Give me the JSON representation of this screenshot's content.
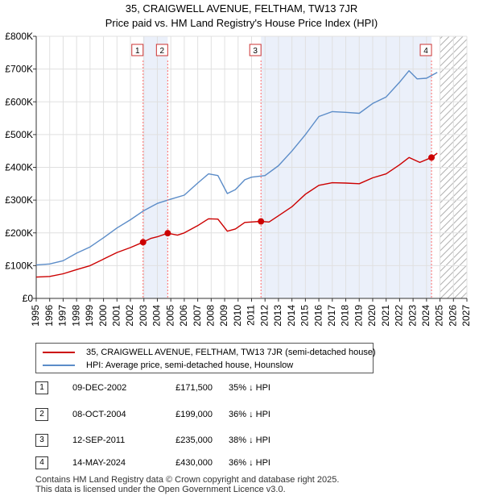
{
  "title": {
    "line1": "35, CRAIGWELL AVENUE, FELTHAM, TW13 7JR",
    "line2": "Price paid vs. HM Land Registry's House Price Index (HPI)"
  },
  "chart_data": {
    "type": "line",
    "xlim": [
      1995,
      2027
    ],
    "ylim": [
      0,
      800000
    ],
    "y_ticks": [
      0,
      100000,
      200000,
      300000,
      400000,
      500000,
      600000,
      700000,
      800000
    ],
    "y_tick_labels": [
      "£0",
      "£100K",
      "£200K",
      "£300K",
      "£400K",
      "£500K",
      "£600K",
      "£700K",
      "£800K"
    ],
    "x_ticks": [
      1995,
      1996,
      1997,
      1998,
      1999,
      2000,
      2001,
      2002,
      2003,
      2004,
      2005,
      2006,
      2007,
      2008,
      2009,
      2010,
      2011,
      2012,
      2013,
      2014,
      2015,
      2016,
      2017,
      2018,
      2019,
      2020,
      2021,
      2022,
      2023,
      2024,
      2025,
      2026,
      2027
    ],
    "x_tick_labels": [
      "1995",
      "1996",
      "1997",
      "1998",
      "1999",
      "2000",
      "2001",
      "2002",
      "2003",
      "2004",
      "2005",
      "2006",
      "2007",
      "2008",
      "2009",
      "2010",
      "2011",
      "2012",
      "2013",
      "2014",
      "2015",
      "2016",
      "2017",
      "2018",
      "2019",
      "2020",
      "2021",
      "2022",
      "2023",
      "2024",
      "2025",
      "2026",
      "2027"
    ],
    "grid": true,
    "future_hatch_from": 2025.0,
    "shaded_spans": [
      [
        2002.94,
        2004.77
      ],
      [
        2011.7,
        2024.37
      ]
    ],
    "series": [
      {
        "name": "35, CRAIGWELL AVENUE, FELTHAM, TW13 7JR (semi-detached house)",
        "color": "#cc0000",
        "points": [
          [
            1995.0,
            65000
          ],
          [
            1996.0,
            67000
          ],
          [
            1997.0,
            75000
          ],
          [
            1998.0,
            88000
          ],
          [
            1999.0,
            100000
          ],
          [
            2000.0,
            120000
          ],
          [
            2001.0,
            140000
          ],
          [
            2002.0,
            155000
          ],
          [
            2002.94,
            171500
          ],
          [
            2003.5,
            183000
          ],
          [
            2004.0,
            188000
          ],
          [
            2004.77,
            199000
          ],
          [
            2005.5,
            193000
          ],
          [
            2006.0,
            200000
          ],
          [
            2007.0,
            222000
          ],
          [
            2007.8,
            243000
          ],
          [
            2008.5,
            242000
          ],
          [
            2009.2,
            205000
          ],
          [
            2009.8,
            212000
          ],
          [
            2010.5,
            232000
          ],
          [
            2011.7,
            235000
          ],
          [
            2012.3,
            233000
          ],
          [
            2013.0,
            252000
          ],
          [
            2014.0,
            280000
          ],
          [
            2015.0,
            318000
          ],
          [
            2016.0,
            345000
          ],
          [
            2017.0,
            353000
          ],
          [
            2018.0,
            352000
          ],
          [
            2019.0,
            350000
          ],
          [
            2020.0,
            368000
          ],
          [
            2021.0,
            380000
          ],
          [
            2022.0,
            408000
          ],
          [
            2022.7,
            430000
          ],
          [
            2023.5,
            415000
          ],
          [
            2024.37,
            430000
          ],
          [
            2024.8,
            443000
          ]
        ]
      },
      {
        "name": "HPI: Average price, semi-detached house, Hounslow",
        "color": "#5b8cc8",
        "points": [
          [
            1995.0,
            102000
          ],
          [
            1996.0,
            105000
          ],
          [
            1997.0,
            115000
          ],
          [
            1998.0,
            138000
          ],
          [
            1999.0,
            157000
          ],
          [
            2000.0,
            185000
          ],
          [
            2001.0,
            215000
          ],
          [
            2002.0,
            240000
          ],
          [
            2003.0,
            268000
          ],
          [
            2004.0,
            290000
          ],
          [
            2005.0,
            303000
          ],
          [
            2006.0,
            315000
          ],
          [
            2007.0,
            352000
          ],
          [
            2007.8,
            380000
          ],
          [
            2008.5,
            375000
          ],
          [
            2009.2,
            320000
          ],
          [
            2009.8,
            332000
          ],
          [
            2010.5,
            362000
          ],
          [
            2011.0,
            370000
          ],
          [
            2012.0,
            375000
          ],
          [
            2013.0,
            405000
          ],
          [
            2014.0,
            450000
          ],
          [
            2015.0,
            500000
          ],
          [
            2016.0,
            555000
          ],
          [
            2017.0,
            570000
          ],
          [
            2018.0,
            568000
          ],
          [
            2019.0,
            565000
          ],
          [
            2020.0,
            595000
          ],
          [
            2021.0,
            615000
          ],
          [
            2022.0,
            660000
          ],
          [
            2022.7,
            695000
          ],
          [
            2023.3,
            670000
          ],
          [
            2024.0,
            672000
          ],
          [
            2024.8,
            690000
          ]
        ]
      }
    ],
    "sales": [
      {
        "num": "1",
        "x": 2002.94,
        "y": 171500
      },
      {
        "num": "2",
        "x": 2004.77,
        "y": 199000
      },
      {
        "num": "3",
        "x": 2011.7,
        "y": 235000
      },
      {
        "num": "4",
        "x": 2024.37,
        "y": 430000
      }
    ]
  },
  "legend": {
    "property": "35, CRAIGWELL AVENUE, FELTHAM, TW13 7JR (semi-detached house)",
    "hpi": "HPI: Average price, semi-detached house, Hounslow"
  },
  "transactions": [
    {
      "num": "1",
      "date": "09-DEC-2002",
      "price": "£171,500",
      "hpi": "35% ↓ HPI"
    },
    {
      "num": "2",
      "date": "08-OCT-2004",
      "price": "£199,000",
      "hpi": "36% ↓ HPI"
    },
    {
      "num": "3",
      "date": "12-SEP-2011",
      "price": "£235,000",
      "hpi": "38% ↓ HPI"
    },
    {
      "num": "4",
      "date": "14-MAY-2024",
      "price": "£430,000",
      "hpi": "36% ↓ HPI"
    }
  ],
  "footer": {
    "line1": "Contains HM Land Registry data © Crown copyright and database right 2025.",
    "line2": "This data is licensed under the Open Government Licence v3.0."
  },
  "colors": {
    "property": "#cc0000",
    "hpi": "#5b8cc8",
    "shade": "#dde6f7"
  }
}
